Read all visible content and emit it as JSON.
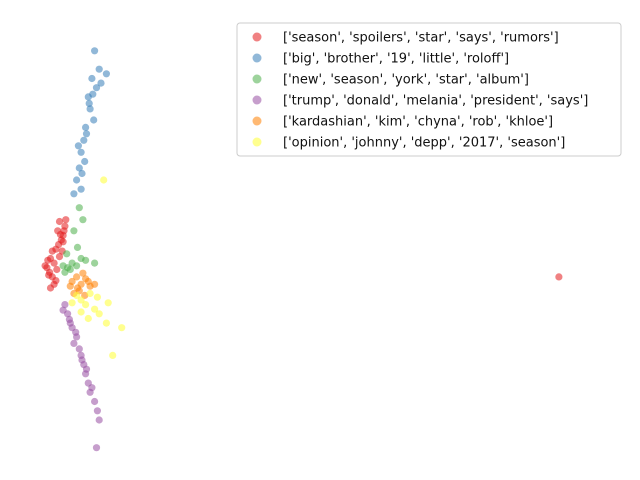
{
  "chart_data": {
    "type": "scatter",
    "title": "",
    "xlabel": "",
    "ylabel": "",
    "axes_visible": false,
    "grid": false,
    "legend_position": "upper right",
    "xlim": [
      -0.6,
      6.5
    ],
    "ylim": [
      -2.2,
      3.0
    ],
    "series": [
      {
        "name": "['season', 'spoilers', 'star', 'says', 'rumors']",
        "color": "#e41a1c",
        "points": [
          [
            -0.05,
            0.05
          ],
          [
            -0.08,
            0.1
          ],
          [
            -0.02,
            0.0
          ],
          [
            0.0,
            0.15
          ],
          [
            -0.04,
            0.2
          ],
          [
            0.02,
            0.3
          ],
          [
            0.05,
            0.35
          ],
          [
            0.08,
            0.4
          ],
          [
            0.1,
            0.45
          ],
          [
            0.04,
            0.5
          ],
          [
            0.12,
            0.55
          ],
          [
            0.06,
            0.6
          ],
          [
            0.1,
            0.38
          ],
          [
            -0.1,
            0.12
          ],
          [
            -0.06,
            0.02
          ],
          [
            0.0,
            -0.08
          ],
          [
            -0.04,
            -0.12
          ],
          [
            0.02,
            -0.04
          ],
          [
            0.06,
            0.22
          ],
          [
            0.09,
            0.28
          ],
          [
            0.11,
            0.5
          ],
          [
            0.13,
            0.62
          ],
          [
            0.07,
            0.46
          ],
          [
            -0.02,
            0.28
          ],
          [
            -0.07,
            0.18
          ],
          [
            0.03,
            0.08
          ],
          [
            5.6,
            0.0
          ]
        ]
      },
      {
        "name": "['big', 'brother', '19', 'little', 'roloff']",
        "color": "#377eb8",
        "points": [
          [
            0.45,
            2.45
          ],
          [
            0.5,
            2.25
          ],
          [
            0.42,
            2.15
          ],
          [
            0.47,
            2.05
          ],
          [
            0.38,
            1.95
          ],
          [
            0.4,
            1.82
          ],
          [
            0.44,
            1.7
          ],
          [
            0.36,
            1.55
          ],
          [
            0.33,
            1.48
          ],
          [
            0.3,
            1.35
          ],
          [
            0.34,
            1.25
          ],
          [
            0.28,
            1.18
          ],
          [
            0.25,
            1.05
          ],
          [
            0.3,
            0.95
          ],
          [
            0.22,
            0.9
          ],
          [
            0.27,
            1.42
          ],
          [
            0.39,
            1.88
          ],
          [
            0.52,
            2.1
          ],
          [
            0.58,
            2.2
          ],
          [
            0.35,
            1.62
          ],
          [
            0.31,
            1.12
          ],
          [
            0.43,
            1.98
          ]
        ]
      },
      {
        "name": "['new', 'season', 'york', 'star', 'album']",
        "color": "#4daf4a",
        "points": [
          [
            0.15,
            0.1
          ],
          [
            0.2,
            0.15
          ],
          [
            0.12,
            0.05
          ],
          [
            0.25,
            0.12
          ],
          [
            0.3,
            0.2
          ],
          [
            0.22,
            0.5
          ],
          [
            0.28,
            0.75
          ],
          [
            0.18,
            0.08
          ],
          [
            0.1,
            0.12
          ],
          [
            0.35,
            0.18
          ],
          [
            0.45,
            0.15
          ],
          [
            0.26,
            0.32
          ],
          [
            0.32,
            0.62
          ],
          [
            0.14,
            0.25
          ]
        ]
      },
      {
        "name": "['trump', 'donald', 'melania', 'president', 'says']",
        "color": "#984ea3",
        "points": [
          [
            0.12,
            -0.3
          ],
          [
            0.15,
            -0.4
          ],
          [
            0.18,
            -0.5
          ],
          [
            0.2,
            -0.55
          ],
          [
            0.25,
            -0.65
          ],
          [
            0.22,
            -0.72
          ],
          [
            0.3,
            -0.85
          ],
          [
            0.33,
            -0.95
          ],
          [
            0.35,
            -1.05
          ],
          [
            0.38,
            -1.15
          ],
          [
            0.4,
            -1.25
          ],
          [
            0.45,
            -1.35
          ],
          [
            0.48,
            -1.45
          ],
          [
            0.5,
            -1.55
          ],
          [
            0.47,
            -1.85
          ],
          [
            0.28,
            -0.78
          ],
          [
            0.17,
            -0.46
          ],
          [
            0.24,
            -0.6
          ],
          [
            0.36,
            -1.0
          ],
          [
            0.42,
            -1.2
          ],
          [
            0.1,
            -0.36
          ],
          [
            0.31,
            -0.9
          ]
        ]
      },
      {
        "name": "['kardashian', 'kim', 'chyna', 'rob', 'khloe']",
        "color": "#ff7f00",
        "points": [
          [
            0.2,
            -0.05
          ],
          [
            0.25,
            0.0
          ],
          [
            0.3,
            -0.08
          ],
          [
            0.35,
            -0.02
          ],
          [
            0.4,
            -0.1
          ],
          [
            0.28,
            -0.15
          ],
          [
            0.22,
            -0.18
          ],
          [
            0.32,
            0.04
          ],
          [
            0.38,
            -0.05
          ],
          [
            0.18,
            -0.1
          ],
          [
            0.45,
            -0.08
          ],
          [
            0.26,
            -0.12
          ],
          [
            0.34,
            -0.2
          ]
        ]
      },
      {
        "name": "['opinion', 'johnny', 'depp', '2017', 'season']",
        "color": "#ffff33",
        "points": [
          [
            0.25,
            -0.2
          ],
          [
            0.3,
            -0.25
          ],
          [
            0.35,
            -0.3
          ],
          [
            0.4,
            -0.18
          ],
          [
            0.45,
            -0.35
          ],
          [
            0.5,
            -0.4
          ],
          [
            0.6,
            -0.28
          ],
          [
            0.75,
            -0.55
          ],
          [
            0.65,
            -0.85
          ],
          [
            0.55,
            1.05
          ],
          [
            0.38,
            -0.45
          ],
          [
            0.2,
            -0.28
          ],
          [
            0.48,
            -0.22
          ],
          [
            0.58,
            -0.5
          ],
          [
            0.3,
            -0.38
          ]
        ]
      }
    ]
  }
}
